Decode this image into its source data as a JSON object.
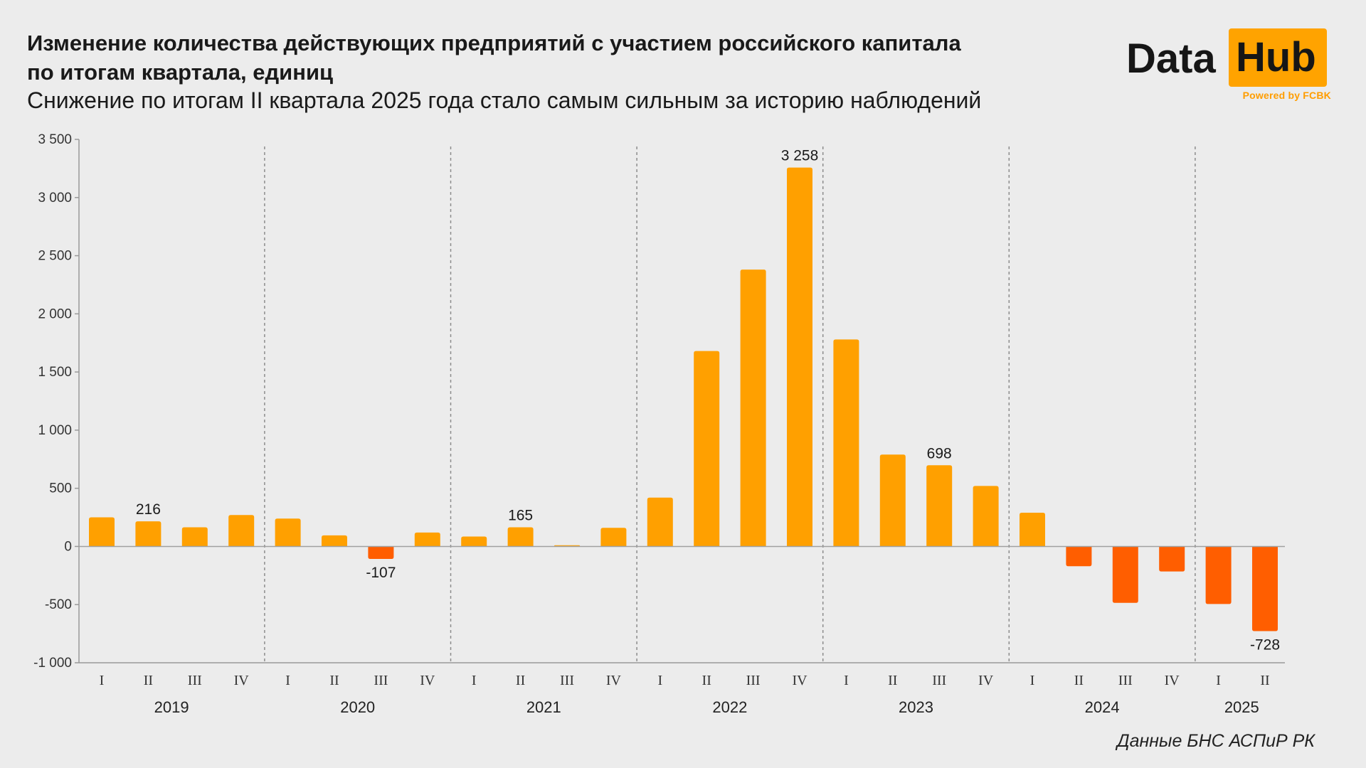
{
  "header": {
    "title_line1": "Изменение количества действующих предприятий с участием российского капитала",
    "title_line2": "по итогам квартала, единиц",
    "subtitle": "Снижение по итогам II квартала 2025 года стало самым сильным за историю наблюдений"
  },
  "logo": {
    "word1": "Data",
    "word2": "Hub",
    "tagline": "Powered by FCBK",
    "accent_color": "#ffa300"
  },
  "source": "Данные БНС АСПиР РК",
  "colors": {
    "positive": "#ffa000",
    "negative": "#ff5e00",
    "axis_text": "#333333",
    "divider": "#8c8c8c"
  },
  "chart_data": {
    "type": "bar",
    "categories": [
      "I",
      "II",
      "III",
      "IV",
      "I",
      "II",
      "III",
      "IV",
      "I",
      "II",
      "III",
      "IV",
      "I",
      "II",
      "III",
      "IV",
      "I",
      "II",
      "III",
      "IV",
      "I",
      "II",
      "III",
      "IV",
      "I",
      "II"
    ],
    "year_groups": [
      {
        "label": "2019",
        "quarters": 4
      },
      {
        "label": "2020",
        "quarters": 4
      },
      {
        "label": "2021",
        "quarters": 4
      },
      {
        "label": "2022",
        "quarters": 4
      },
      {
        "label": "2023",
        "quarters": 4
      },
      {
        "label": "2024",
        "quarters": 4
      },
      {
        "label": "2025",
        "quarters": 2
      }
    ],
    "values": [
      250,
      216,
      165,
      270,
      240,
      95,
      -107,
      120,
      85,
      165,
      10,
      160,
      420,
      1680,
      2380,
      3258,
      1780,
      790,
      698,
      520,
      290,
      -170,
      -485,
      -215,
      -495,
      -728
    ],
    "data_labels": [
      {
        "index": 1,
        "text": "216"
      },
      {
        "index": 6,
        "text": "-107"
      },
      {
        "index": 9,
        "text": "165"
      },
      {
        "index": 15,
        "text": "3 258"
      },
      {
        "index": 18,
        "text": "698"
      },
      {
        "index": 25,
        "text": "-728"
      }
    ],
    "ylim": [
      -1000,
      3500
    ],
    "yticks": [
      {
        "value": 3500,
        "label": "3 500"
      },
      {
        "value": 3000,
        "label": "3 000"
      },
      {
        "value": 2500,
        "label": "2 500"
      },
      {
        "value": 2000,
        "label": "2 000"
      },
      {
        "value": 1500,
        "label": "1 500"
      },
      {
        "value": 1000,
        "label": "1 000"
      },
      {
        "value": 500,
        "label": "500"
      },
      {
        "value": 0,
        "label": "0"
      },
      {
        "value": -500,
        "label": "-500"
      },
      {
        "value": -1000,
        "label": "-1 000"
      }
    ],
    "xlabel": "",
    "ylabel": "",
    "grid": false,
    "legend": "none"
  }
}
